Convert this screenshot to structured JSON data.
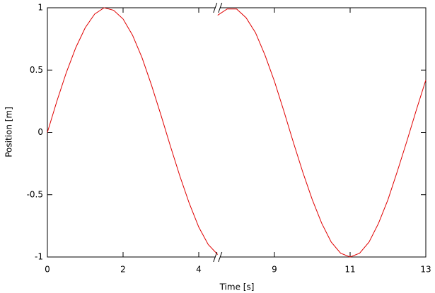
{
  "chart_data": {
    "type": "line",
    "xlabel": "Time [s]",
    "ylabel": "Position [m]",
    "xlim": [
      0,
      13
    ],
    "xbreak": [
      4.5,
      7.5
    ],
    "xticks": [
      0,
      2,
      4,
      9,
      11,
      13
    ],
    "ylim": [
      -1,
      1
    ],
    "yticks": [
      -1,
      -0.5,
      0,
      0.5,
      1
    ],
    "series": [
      {
        "color": "#e00000",
        "x": [
          0,
          0.25,
          0.5,
          0.75,
          1,
          1.25,
          1.5,
          1.75,
          2,
          2.25,
          2.5,
          2.75,
          3,
          3.25,
          3.5,
          3.75,
          4,
          4.25,
          4.5
        ],
        "values": [
          0,
          0.25,
          0.48,
          0.68,
          0.84,
          0.95,
          1.0,
          0.98,
          0.91,
          0.78,
          0.6,
          0.38,
          0.14,
          -0.11,
          -0.35,
          -0.57,
          -0.76,
          -0.9,
          -0.98
        ]
      },
      {
        "color": "#e00000",
        "x": [
          7.5,
          7.75,
          8,
          8.25,
          8.5,
          8.75,
          9,
          9.25,
          9.5,
          9.75,
          10,
          10.25,
          10.5,
          10.75,
          11,
          11.25,
          11.5,
          11.75,
          12,
          12.25,
          12.5,
          12.75,
          13
        ],
        "values": [
          0.94,
          0.99,
          0.99,
          0.92,
          0.8,
          0.62,
          0.41,
          0.17,
          -0.08,
          -0.32,
          -0.54,
          -0.73,
          -0.88,
          -0.97,
          -1.0,
          -0.97,
          -0.88,
          -0.73,
          -0.54,
          -0.31,
          -0.07,
          0.18,
          0.42
        ]
      }
    ]
  }
}
